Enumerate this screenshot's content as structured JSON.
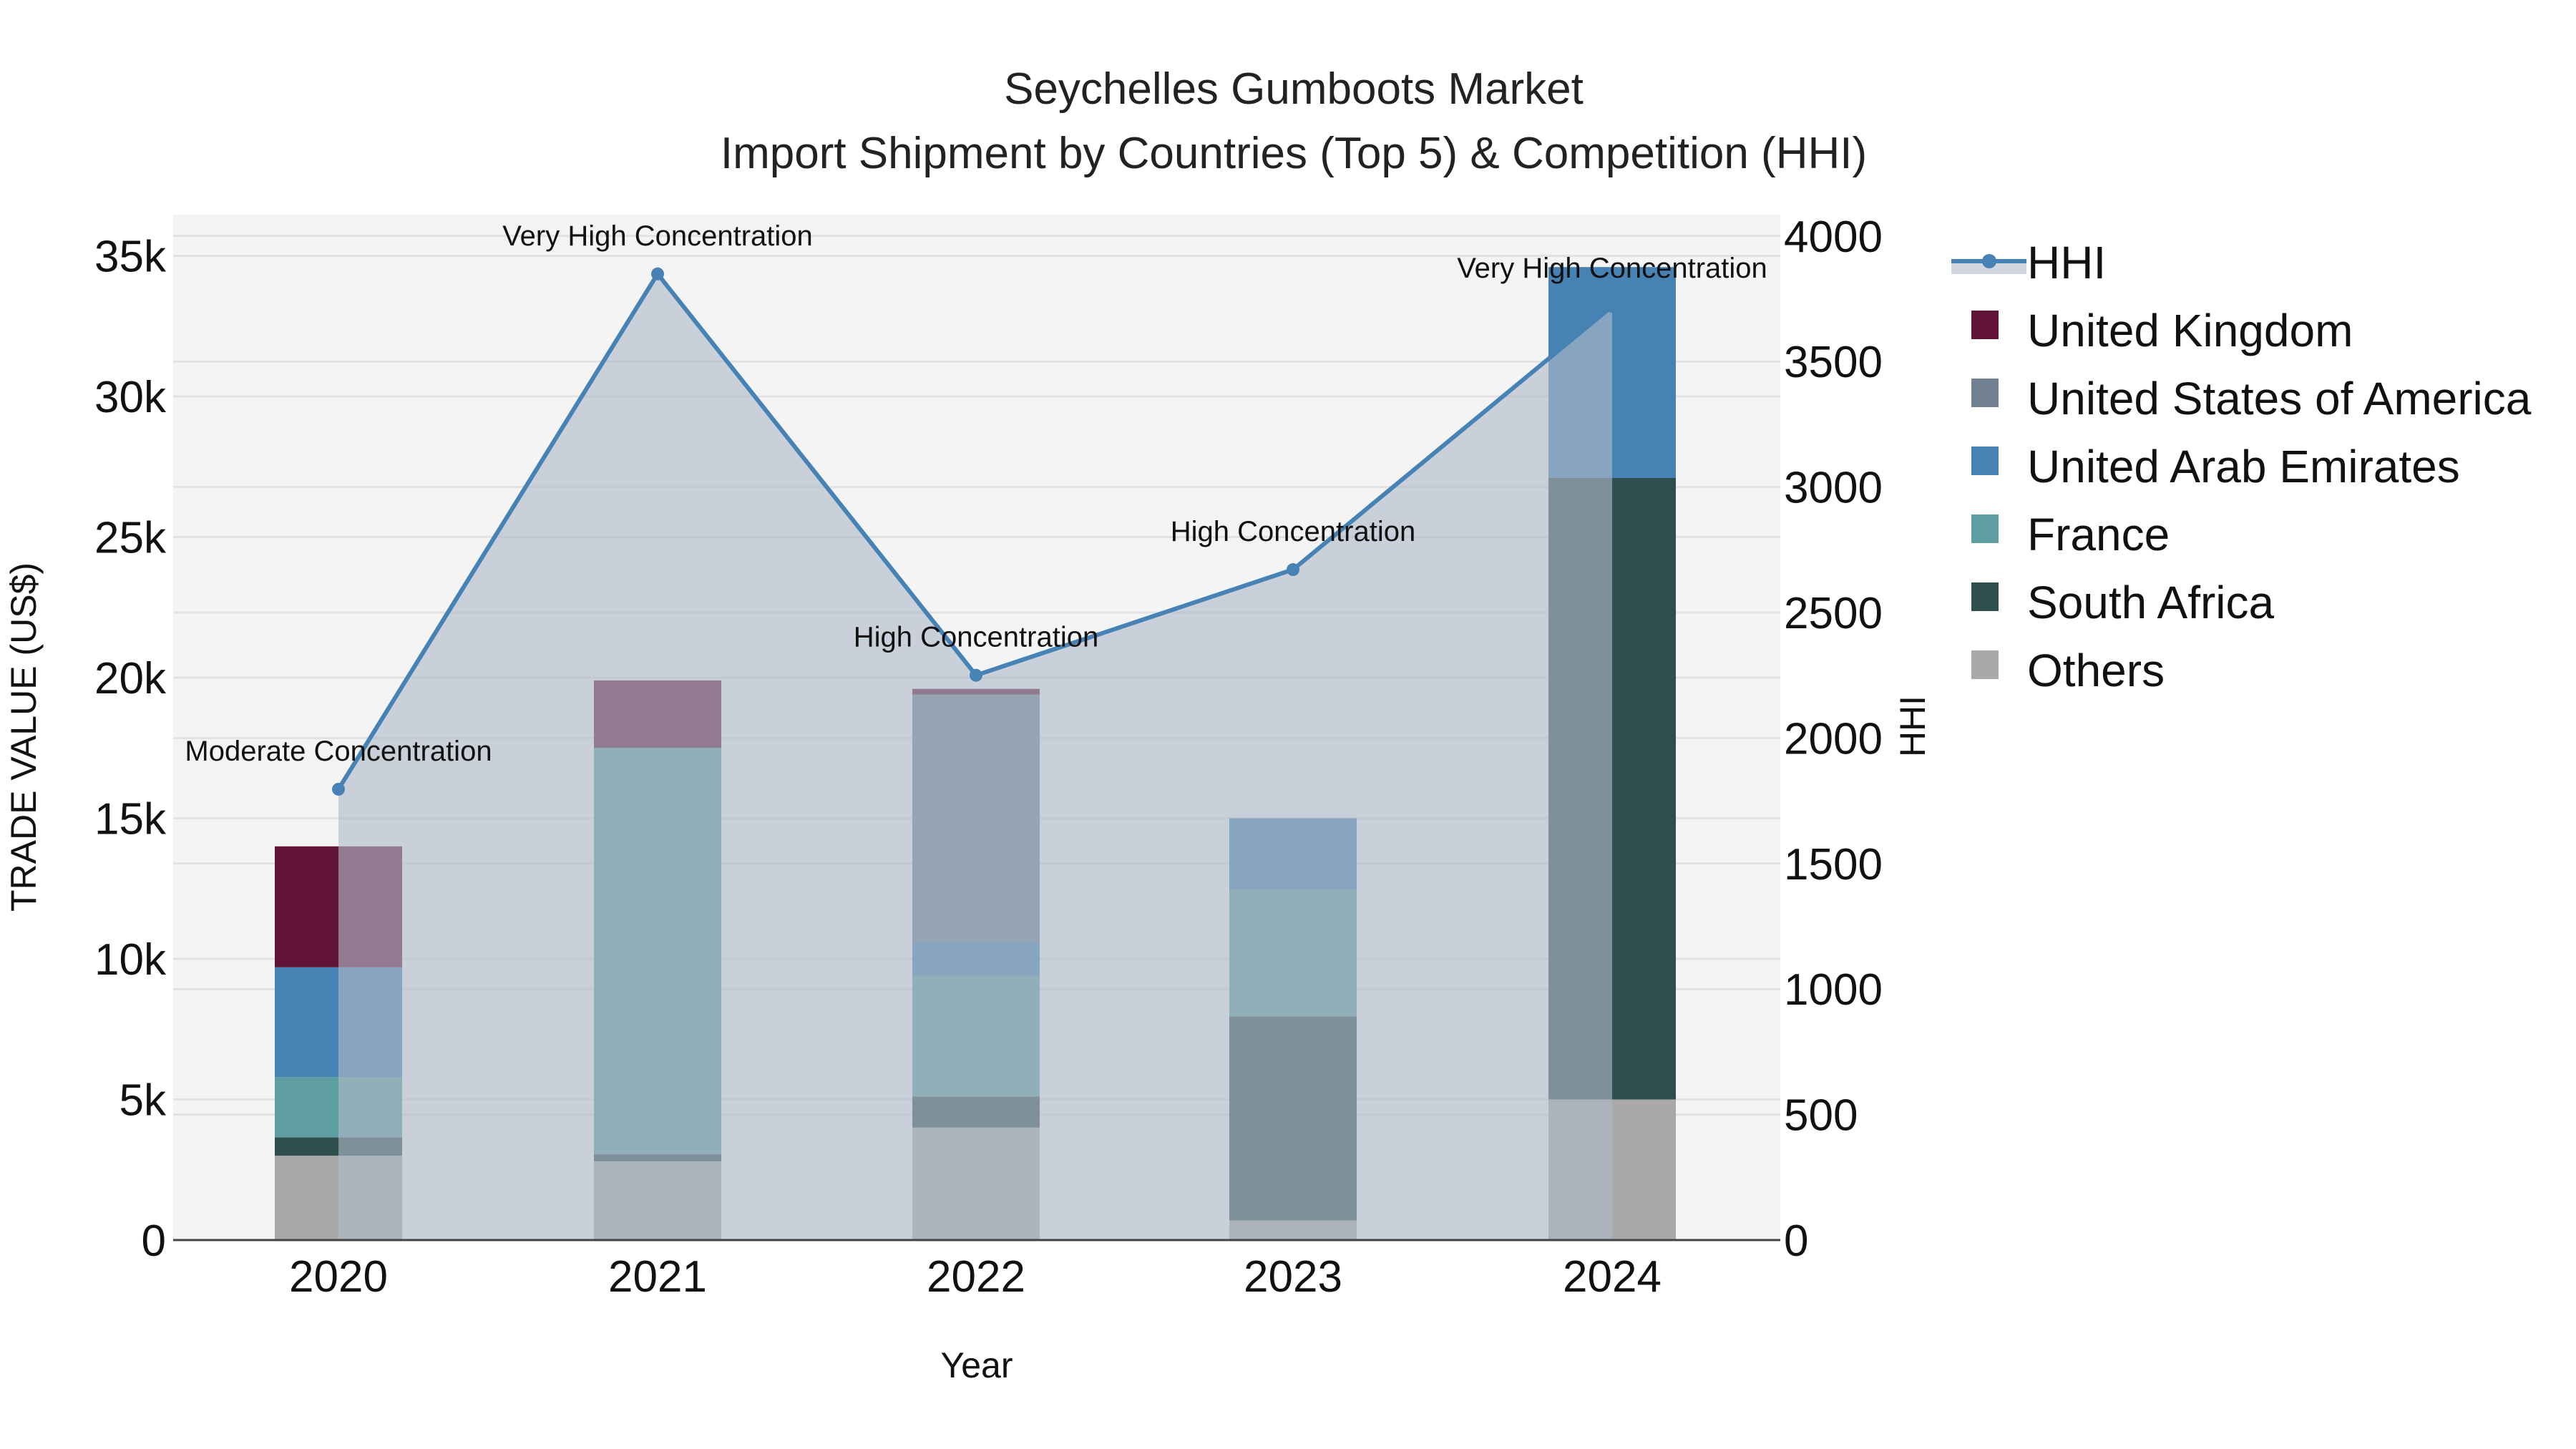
{
  "title": {
    "line1": "Seychelles Gumboots Market",
    "line2": "Import Shipment by Countries (Top 5) & Competition (HHI)"
  },
  "axes": {
    "x_label": "Year",
    "y_left_label": "TRADE VALUE (US$)",
    "y_right_label": "HHI",
    "y_left_ticks": [
      "0",
      "5k",
      "10k",
      "15k",
      "20k",
      "25k",
      "30k",
      "35k"
    ],
    "y_right_ticks": [
      "0",
      "500",
      "1000",
      "1500",
      "2000",
      "2500",
      "3000",
      "3500",
      "4000"
    ]
  },
  "colors": {
    "United Kingdom": "#611437",
    "United States of America": "#708090",
    "United Arab Emirates": "#4682B4",
    "France": "#5F9EA0",
    "South Africa": "#2F4F4F",
    "Others": "#A9A9A9",
    "HHI_line": "#4682B4",
    "HHI_fill": "rgba(176,186,200,0.62)",
    "plot_bg": "#F4F4F4"
  },
  "legend": [
    {
      "label": "HHI",
      "type": "line"
    },
    {
      "label": "United Kingdom",
      "type": "box"
    },
    {
      "label": "United States of America",
      "type": "box"
    },
    {
      "label": "United Arab Emirates",
      "type": "box"
    },
    {
      "label": "France",
      "type": "box"
    },
    {
      "label": "South Africa",
      "type": "box"
    },
    {
      "label": "Others",
      "type": "box"
    }
  ],
  "chart_data": {
    "type": "bar",
    "stacked": true,
    "title": "Seychelles Gumboots Market — Import Shipment by Countries (Top 5) & Competition (HHI)",
    "xlabel": "Year",
    "ylabel": "TRADE VALUE (US$)",
    "y2label": "HHI",
    "ylim": [
      0,
      36000
    ],
    "y2lim": [
      0,
      4050
    ],
    "grid": true,
    "legend_position": "right",
    "categories": [
      "2020",
      "2021",
      "2022",
      "2023",
      "2024"
    ],
    "series": [
      {
        "name": "Others",
        "values": [
          3000,
          2800,
          4000,
          700,
          5000
        ]
      },
      {
        "name": "South Africa",
        "values": [
          650,
          250,
          1100,
          7250,
          22100
        ]
      },
      {
        "name": "France",
        "values": [
          2150,
          14450,
          4300,
          4500,
          0
        ]
      },
      {
        "name": "United Arab Emirates",
        "values": [
          3900,
          0,
          1200,
          2550,
          7500
        ]
      },
      {
        "name": "United States of America",
        "values": [
          0,
          0,
          8800,
          0,
          0
        ]
      },
      {
        "name": "United Kingdom",
        "values": [
          4300,
          2400,
          200,
          0,
          0
        ]
      }
    ],
    "line_series": {
      "name": "HHI",
      "axis": "right",
      "values": [
        1796,
        3849,
        2250,
        2671,
        3720
      ],
      "annotations": [
        "Moderate Concentration",
        "Very High Concentration",
        "High Concentration",
        "High Concentration",
        "Very High Concentration"
      ]
    }
  }
}
